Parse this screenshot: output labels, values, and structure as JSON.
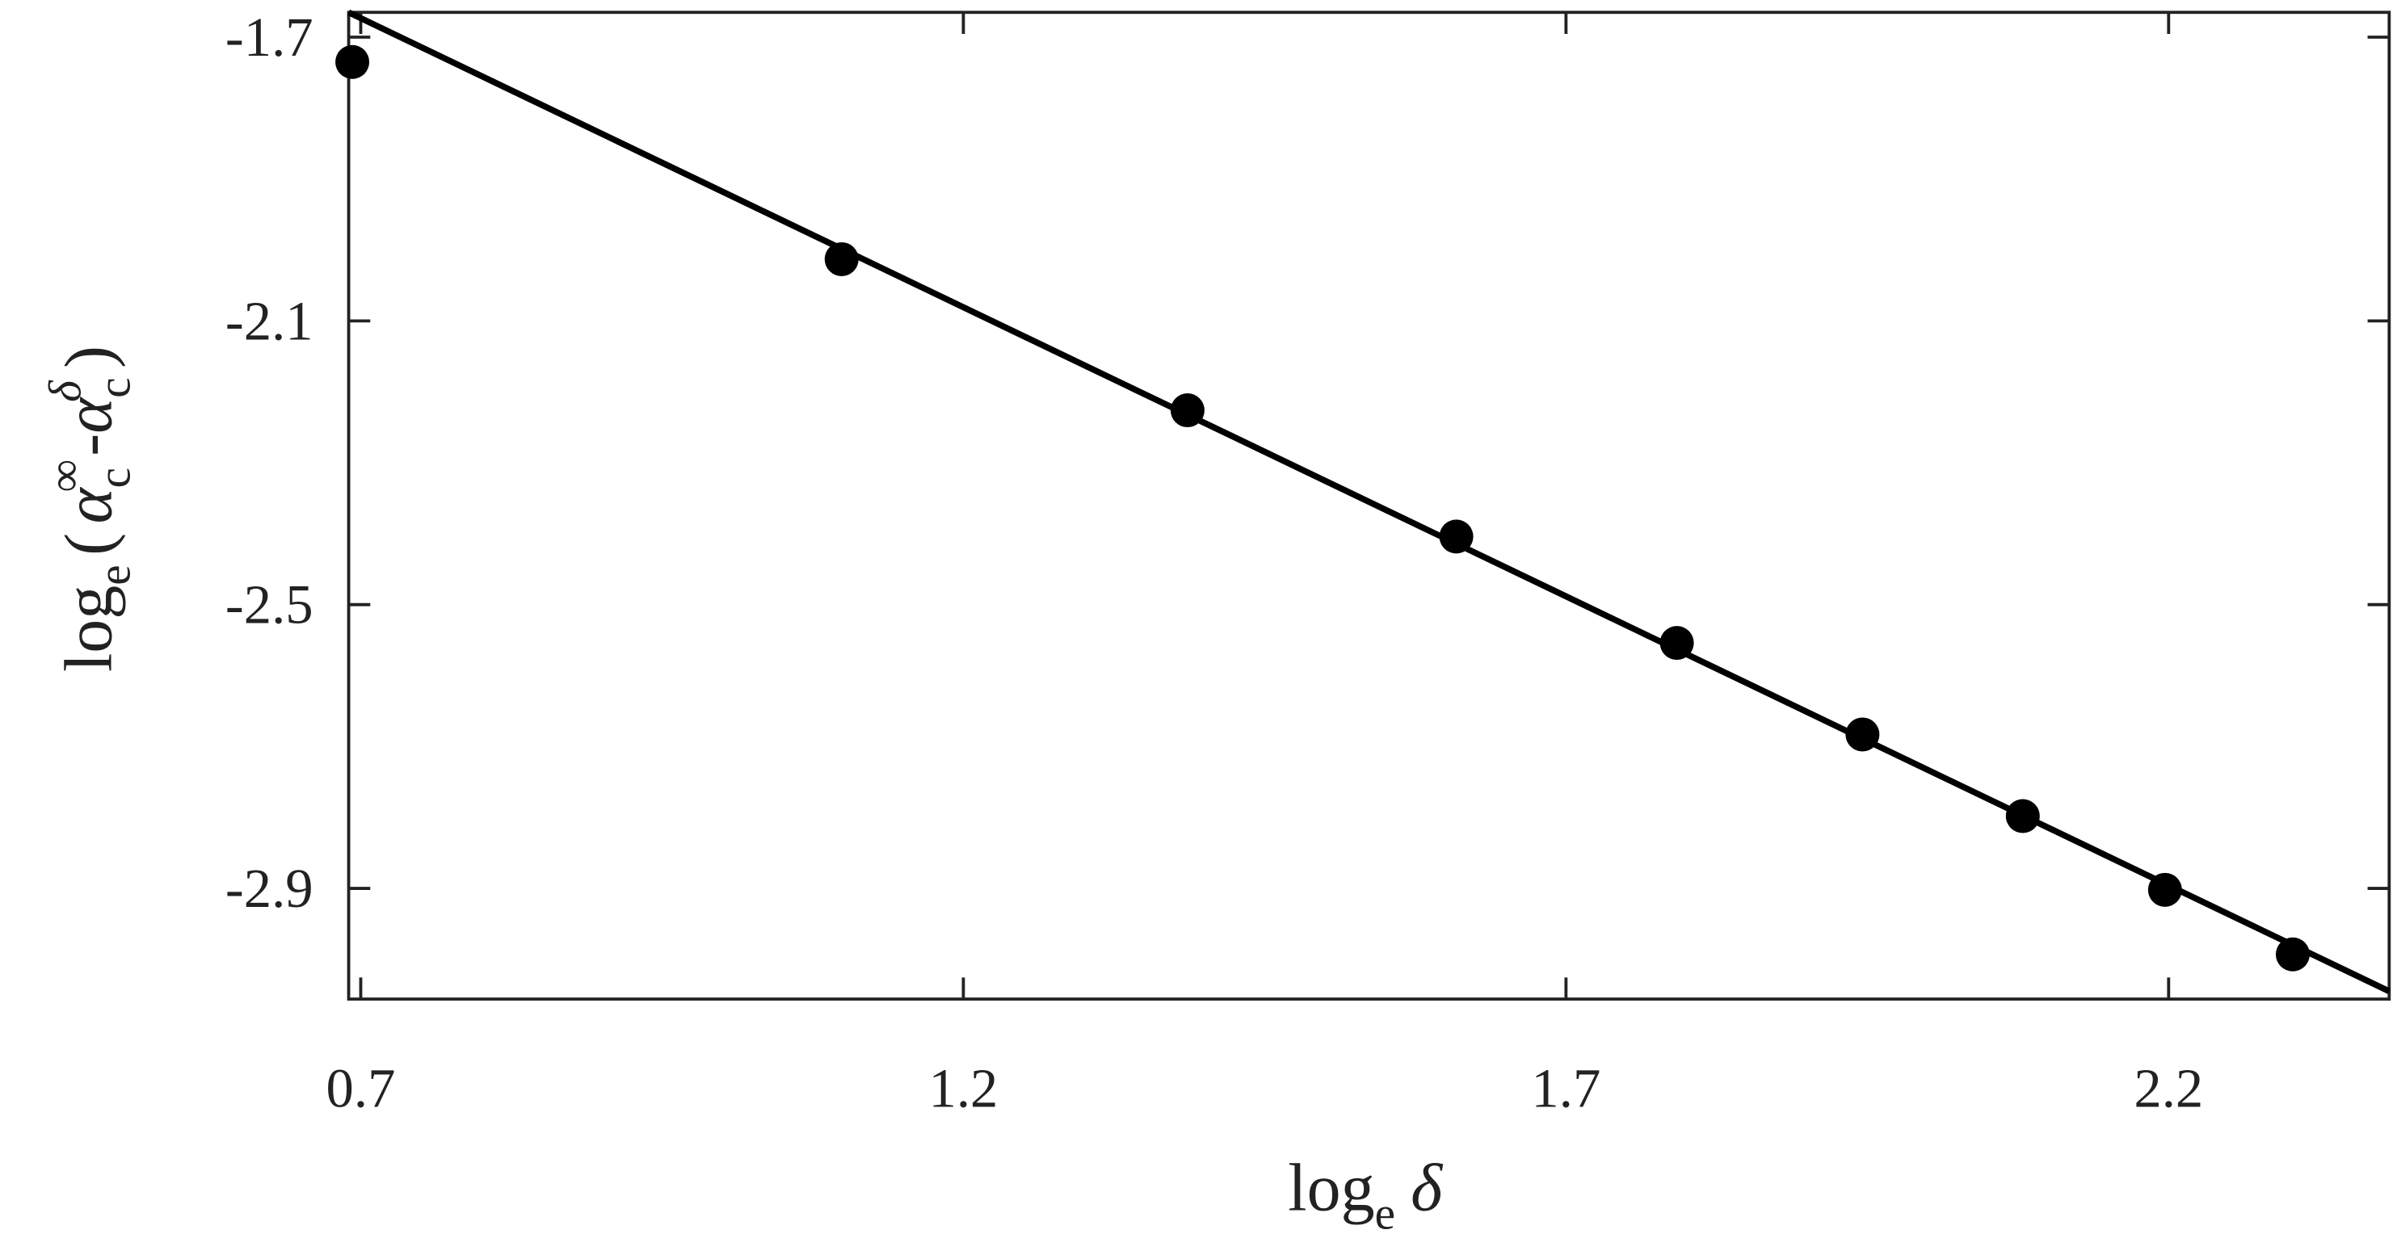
{
  "chart_data": {
    "type": "scatter",
    "xlabel": [
      "log",
      "e",
      "δ"
    ],
    "ylabel": [
      "log",
      "e",
      "(",
      "α",
      "c",
      "∞",
      "-",
      "α",
      "c",
      "δ",
      ")"
    ],
    "x": [
      0.693,
      1.099,
      1.386,
      1.609,
      1.792,
      1.946,
      2.079,
      2.197,
      2.303
    ],
    "values": [
      -1.735,
      -2.013,
      -2.226,
      -2.404,
      -2.554,
      -2.683,
      -2.798,
      -2.902,
      -2.993
    ],
    "color": "#000000",
    "fit": {
      "x": [
        0.69,
        2.383
      ],
      "values": [
        -1.665,
        -3.045
      ]
    },
    "xlim": [
      0.69,
      2.383
    ],
    "ylim": [
      -3.056,
      -1.665
    ],
    "xticks": [
      0.7,
      1.2,
      1.7,
      2.2
    ],
    "yticks": [
      -1.7,
      -2.1,
      -2.5,
      -2.9
    ]
  }
}
